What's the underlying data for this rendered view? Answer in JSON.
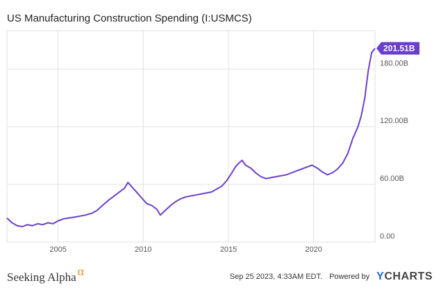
{
  "header": {
    "title": "US Manufacturing Construction Spending (I:USMCS)"
  },
  "footer": {
    "brand_left": "Seeking Alpha",
    "brand_left_symbol": "α",
    "timestamp": "Sep 25 2023, 4:33AM EDT.",
    "powered_by": "Powered by",
    "brand_right_prefix": "Y",
    "brand_right_rest": "CHARTS"
  },
  "colors": {
    "line": "#6a3fc9",
    "grid": "#e0e0e0",
    "badge": "#6a3fc9",
    "alpha": "#f28c1e",
    "ycharts_y": "#1a6bd1"
  },
  "chart_data": {
    "type": "line",
    "title": "US Manufacturing Construction Spending (I:USMCS)",
    "xlabel": "",
    "ylabel": "",
    "xlim": [
      2002.0,
      2023.6
    ],
    "ylim": [
      0,
      220
    ],
    "x_ticks": [
      2005,
      2010,
      2015,
      2020
    ],
    "x_tick_labels": [
      "2005",
      "2010",
      "2015",
      "2020"
    ],
    "y_ticks": [
      0,
      60,
      120,
      180
    ],
    "y_tick_labels": [
      "0.00",
      "60.00B",
      "120.00B",
      "180.00B"
    ],
    "grid": true,
    "last_value_label": "201.51B",
    "last_value": 201.51,
    "series": [
      {
        "color": "#6a3fc9",
        "x": [
          2002.0,
          2002.3,
          2002.6,
          2002.9,
          2003.2,
          2003.5,
          2003.8,
          2004.1,
          2004.4,
          2004.7,
          2005.0,
          2005.3,
          2005.6,
          2006.0,
          2006.3,
          2006.6,
          2007.0,
          2007.3,
          2007.6,
          2008.0,
          2008.3,
          2008.6,
          2008.9,
          2009.1,
          2009.3,
          2009.6,
          2009.9,
          2010.2,
          2010.5,
          2010.8,
          2011.0,
          2011.3,
          2011.6,
          2011.9,
          2012.2,
          2012.5,
          2012.8,
          2013.1,
          2013.4,
          2013.7,
          2014.0,
          2014.3,
          2014.6,
          2014.9,
          2015.2,
          2015.4,
          2015.6,
          2015.8,
          2016.0,
          2016.3,
          2016.6,
          2016.9,
          2017.2,
          2017.5,
          2017.8,
          2018.1,
          2018.4,
          2018.7,
          2019.0,
          2019.3,
          2019.6,
          2019.9,
          2020.2,
          2020.5,
          2020.8,
          2021.1,
          2021.4,
          2021.7,
          2022.0,
          2022.3,
          2022.6,
          2022.8,
          2023.0,
          2023.2,
          2023.4,
          2023.6
        ],
        "y": [
          25,
          20,
          17,
          16,
          18,
          17,
          19,
          18,
          20,
          19,
          22,
          24,
          25,
          26,
          27,
          28,
          30,
          33,
          38,
          44,
          48,
          52,
          56,
          62,
          58,
          52,
          46,
          40,
          38,
          34,
          28,
          33,
          38,
          42,
          45,
          47,
          48,
          49,
          50,
          51,
          52,
          55,
          58,
          64,
          72,
          78,
          82,
          85,
          80,
          77,
          72,
          68,
          66,
          67,
          68,
          69,
          70,
          72,
          74,
          76,
          78,
          80,
          77,
          73,
          70,
          72,
          76,
          82,
          92,
          108,
          120,
          132,
          150,
          178,
          197,
          201.51
        ]
      }
    ]
  }
}
